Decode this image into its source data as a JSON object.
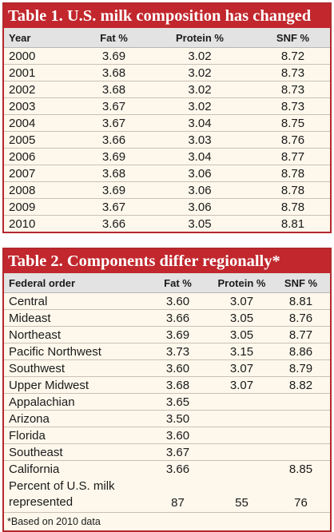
{
  "table1": {
    "title": "Table 1. U.S. milk composition has changed",
    "headers": [
      "Year",
      "Fat %",
      "Protein %",
      "SNF %"
    ],
    "rows": [
      [
        "2000",
        "3.69",
        "3.02",
        "8.72"
      ],
      [
        "2001",
        "3.68",
        "3.02",
        "8.73"
      ],
      [
        "2002",
        "3.68",
        "3.02",
        "8.73"
      ],
      [
        "2003",
        "3.67",
        "3.02",
        "8.73"
      ],
      [
        "2004",
        "3.67",
        "3.04",
        "8.75"
      ],
      [
        "2005",
        "3.66",
        "3.03",
        "8.76"
      ],
      [
        "2006",
        "3.69",
        "3.04",
        "8.77"
      ],
      [
        "2007",
        "3.68",
        "3.06",
        "8.78"
      ],
      [
        "2008",
        "3.69",
        "3.06",
        "8.78"
      ],
      [
        "2009",
        "3.67",
        "3.06",
        "8.78"
      ],
      [
        "2010",
        "3.66",
        "3.05",
        "8.81"
      ]
    ]
  },
  "table2": {
    "title": "Table 2. Components differ regionally*",
    "headers": [
      "Federal order",
      "Fat %",
      "Protein %",
      "SNF %"
    ],
    "rows": [
      [
        "Central",
        "3.60",
        "3.07",
        "8.81"
      ],
      [
        "Mideast",
        "3.66",
        "3.05",
        "8.76"
      ],
      [
        "Northeast",
        "3.69",
        "3.05",
        "8.77"
      ],
      [
        "Pacific Northwest",
        "3.73",
        "3.15",
        "8.86"
      ],
      [
        "Southwest",
        "3.60",
        "3.07",
        "8.79"
      ],
      [
        "Upper Midwest",
        "3.68",
        "3.07",
        "8.82"
      ],
      [
        "Appalachian",
        "3.65",
        "",
        ""
      ],
      [
        "Arizona",
        "3.50",
        "",
        ""
      ],
      [
        "Florida",
        "3.60",
        "",
        ""
      ],
      [
        "Southeast",
        "3.67",
        "",
        ""
      ],
      [
        "California",
        "3.66",
        "",
        "8.85"
      ]
    ],
    "percent_row": [
      "Percent of U.S. milk represented",
      "87",
      "55",
      "76"
    ],
    "footnote": "*Based on 2010 data"
  },
  "colors": {
    "title_bg": "#c1272d",
    "border": "#b3282d",
    "header_bg": "#e3e3e3",
    "body_bg": "#fef8ec"
  }
}
